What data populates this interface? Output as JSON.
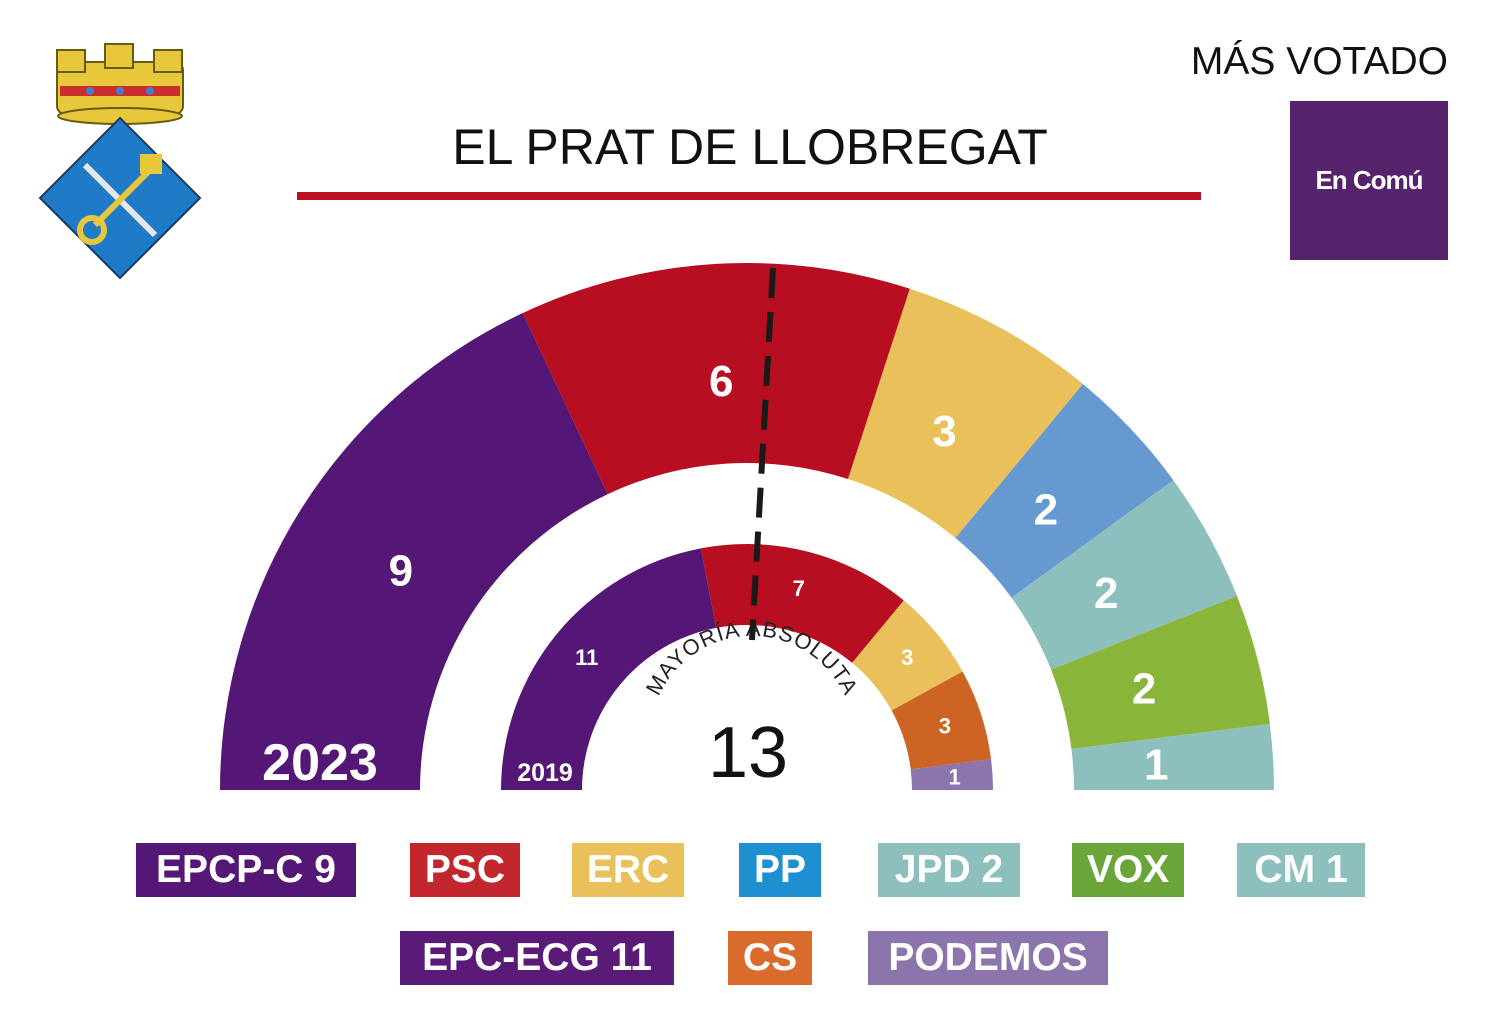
{
  "header": {
    "title": "EL PRAT DE LLOBREGAT",
    "most_voted_label": "MÁS VOTADO",
    "most_voted_party": "En Comú",
    "most_voted_color": "#55226b"
  },
  "colors": {
    "title_rule": "#b81122",
    "majority_line": "#1a1a1a"
  },
  "majority": {
    "label": "MAYORÍA ABSOLUTA",
    "value": "13"
  },
  "chart_data": [
    {
      "type": "hemicycle",
      "year": "2023",
      "total_seats": 25,
      "series": [
        {
          "seats": 9,
          "color": "#551775"
        },
        {
          "seats": 6,
          "color": "#b80e22"
        },
        {
          "seats": 3,
          "color": "#e9c05a"
        },
        {
          "seats": 2,
          "color": "#6599d0"
        },
        {
          "seats": 2,
          "color": "#8dc0bd"
        },
        {
          "seats": 2,
          "color": "#8ab53b"
        },
        {
          "seats": 1,
          "color": "#8dc0bd"
        }
      ]
    },
    {
      "type": "hemicycle",
      "year": "2019",
      "total_seats": 25,
      "series": [
        {
          "seats": 11,
          "color": "#551775"
        },
        {
          "seats": 7,
          "color": "#b80e22"
        },
        {
          "seats": 3,
          "color": "#e9c05a"
        },
        {
          "seats": 3,
          "color": "#cd6424"
        },
        {
          "seats": 1,
          "color": "#8c75ad"
        }
      ]
    }
  ],
  "legend": {
    "row1": [
      {
        "label": "EPCP-C 9",
        "color": "#551775"
      },
      {
        "label": "PSC",
        "color": "#c1272d"
      },
      {
        "label": "ERC",
        "color": "#e9c05a"
      },
      {
        "label": "PP",
        "color": "#1e90d2"
      },
      {
        "label": "JPD 2",
        "color": "#8dc0bd"
      },
      {
        "label": "VOX",
        "color": "#6aa53a"
      },
      {
        "label": "CM 1",
        "color": "#8dc0bd"
      }
    ],
    "row2": [
      {
        "label": "EPC-ECG 11",
        "color": "#5a1a78"
      },
      {
        "label": "CS",
        "color": "#d96c2c"
      },
      {
        "label": "PODEMOS",
        "color": "#8c75ad"
      }
    ]
  },
  "coat_of_arms": {
    "crown_color": "#e7c83a",
    "shield_color": "#1f7ac8"
  }
}
